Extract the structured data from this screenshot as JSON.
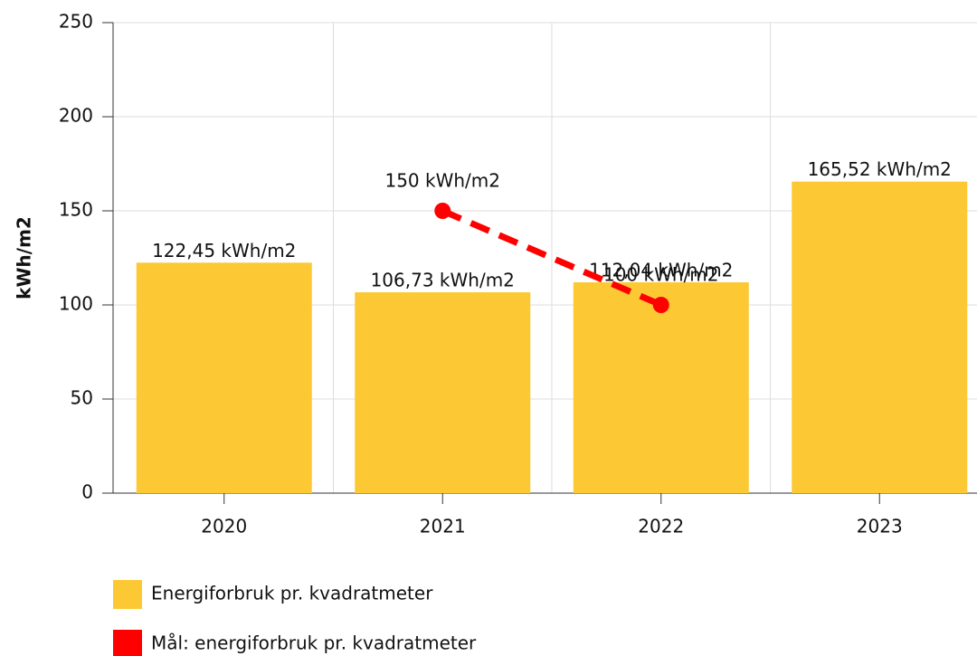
{
  "chart_data": {
    "type": "bar",
    "y_label": "kWh/m2",
    "categories": [
      "2020",
      "2021",
      "2022",
      "2023"
    ],
    "series": [
      {
        "name": "Energiforbruk pr. kvadratmeter",
        "type": "bar",
        "color": "#fcc934",
        "values": [
          122.45,
          106.73,
          112.04,
          165.52
        ],
        "value_labels": [
          "122,45 kWh/m2",
          "106,73 kWh/m2",
          "112,04 kWh/m2",
          "165,52 kWh/m2"
        ]
      },
      {
        "name": "Mål: energiforbruk pr. kvadratmeter",
        "type": "line",
        "color": "#ff0000",
        "values": [
          null,
          150,
          100,
          null
        ],
        "value_labels": [
          null,
          "150 kWh/m2",
          "100 kWh/m2",
          null
        ]
      }
    ],
    "ylim": [
      0,
      250
    ],
    "yticks": [
      0,
      50,
      100,
      150,
      200,
      250
    ],
    "grid": true
  }
}
